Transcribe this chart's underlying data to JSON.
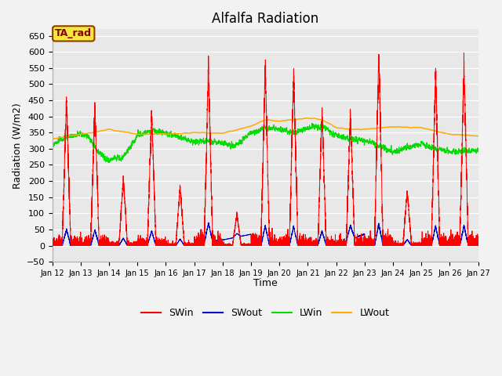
{
  "title": "Alfalfa Radiation",
  "ylabel": "Radiation (W/m2)",
  "xlabel": "Time",
  "annotation": "TA_rad",
  "ylim": [
    -50,
    670
  ],
  "xlim": [
    12,
    27
  ],
  "yticks": [
    -50,
    0,
    50,
    100,
    150,
    200,
    250,
    300,
    350,
    400,
    450,
    500,
    550,
    600,
    650
  ],
  "colors": {
    "SWin": "#ff0000",
    "SWout": "#0000cc",
    "LWin": "#00dd00",
    "LWout": "#ffaa00"
  },
  "background_color": "#e8e8e8",
  "grid_color": "#ffffff",
  "title_fontsize": 12,
  "label_fontsize": 9,
  "tick_fontsize": 8,
  "legend_fontsize": 9
}
